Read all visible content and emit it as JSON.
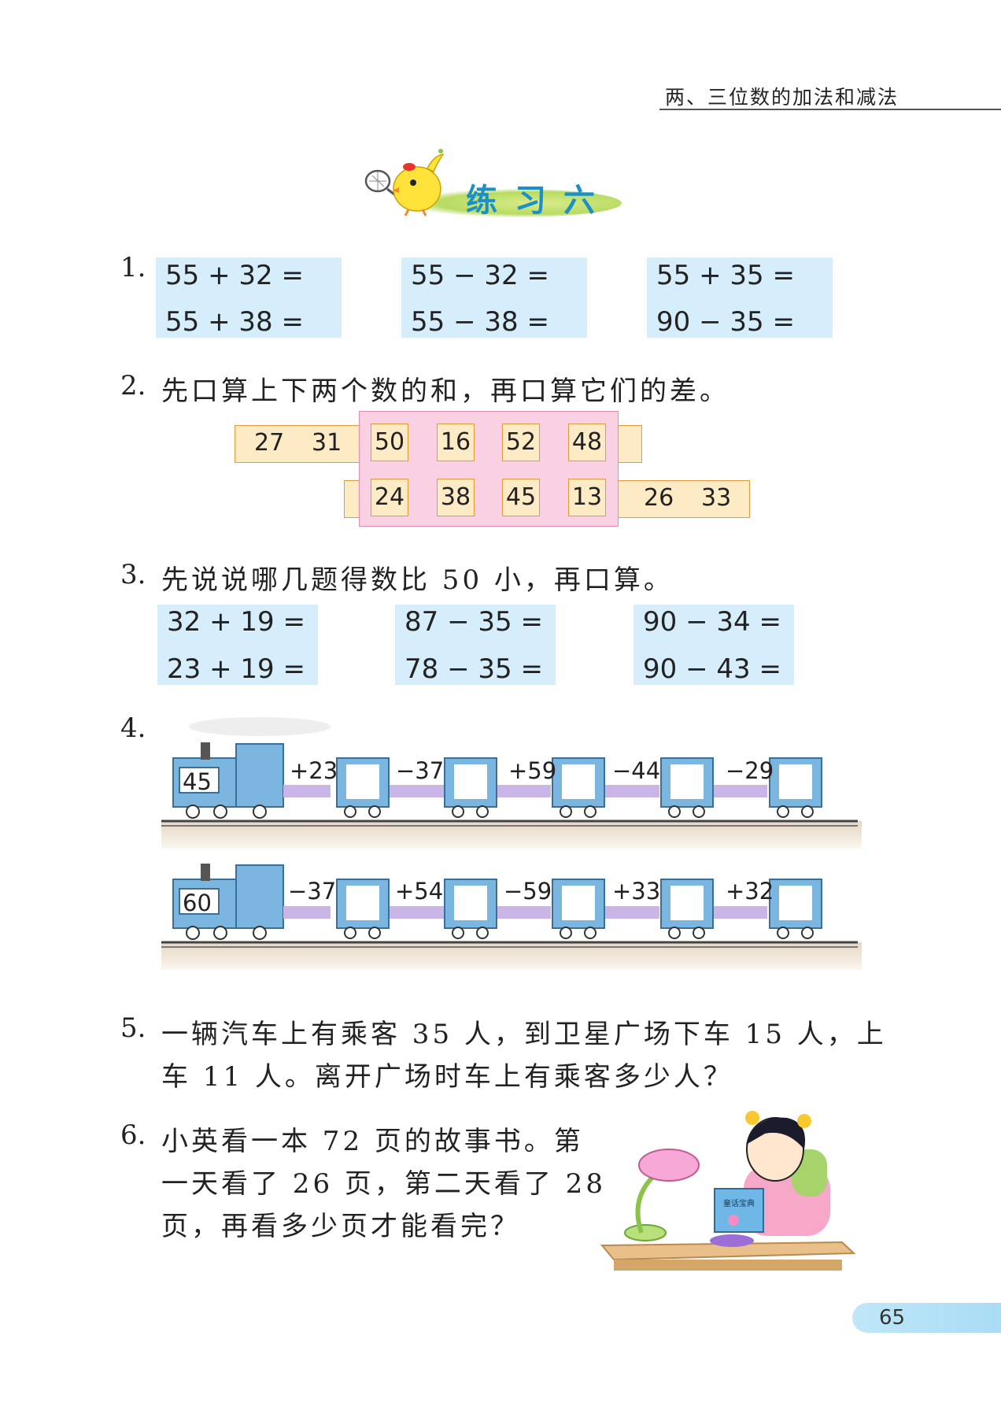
{
  "header": {
    "chapter_title": "两、三位数的加法和减法"
  },
  "exercise_title": "练习六",
  "q1": {
    "number": "1.",
    "groups": [
      [
        "55 + 32 =",
        "55 + 38 ="
      ],
      [
        "55 − 32 =",
        "55 − 38 ="
      ],
      [
        "55 + 35 =",
        "90 − 35 ="
      ]
    ]
  },
  "q2": {
    "number": "2.",
    "instruction": "先口算上下两个数的和，再口算它们的差。",
    "top_row": {
      "left_numbers": [
        "27",
        "31"
      ],
      "cells": [
        "50",
        "16",
        "52",
        "48"
      ]
    },
    "bottom_row": {
      "cells": [
        "24",
        "38",
        "45",
        "13"
      ],
      "right_numbers": [
        "26",
        "33"
      ]
    }
  },
  "q3": {
    "number": "3.",
    "instruction": "先说说哪几题得数比 50 小，再口算。",
    "groups": [
      [
        "32 + 19 =",
        "23 + 19 ="
      ],
      [
        "87 − 35 =",
        "78 − 35 ="
      ],
      [
        "90 − 34 =",
        "90 − 43 ="
      ]
    ]
  },
  "q4": {
    "number": "4.",
    "trains": [
      {
        "start": "45",
        "ops": [
          "+23",
          "−37",
          "+59",
          "−44",
          "−29"
        ]
      },
      {
        "start": "60",
        "ops": [
          "−37",
          "+54",
          "−59",
          "+33",
          "+32"
        ]
      }
    ]
  },
  "q5": {
    "number": "5.",
    "lines": [
      "一辆汽车上有乘客 35 人，到卫星广场下车 15 人，上",
      "车 11 人。离开广场时车上有乘客多少人？"
    ]
  },
  "q6": {
    "number": "6.",
    "lines": [
      "小英看一本 72 页的故事书。第",
      "一天看了 26 页，第二天看了 28",
      "页，再看多少页才能看完？"
    ],
    "book_text": "童话宝典"
  },
  "page_number": "65",
  "colors": {
    "title_blue": "#1d8fc8",
    "box_blue": "#d6eefb",
    "strip_orange": "#fdebc6",
    "pink": "#f9d1e3",
    "train_blue": "#7bb6e0",
    "train_purple": "#c9b5e6"
  }
}
